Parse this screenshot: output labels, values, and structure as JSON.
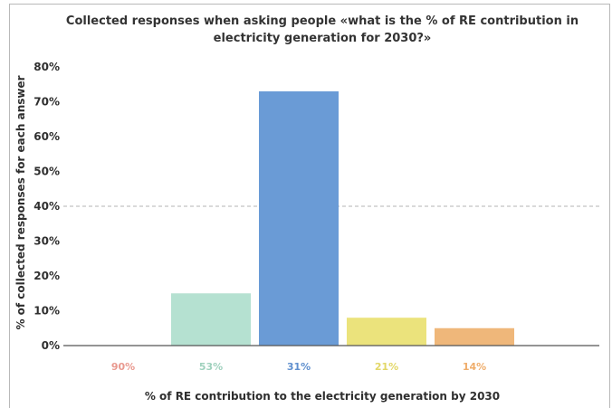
{
  "chart_data": {
    "type": "bar",
    "title_lines": [
      "Collected responses when asking people «what is the % of RE contribution in",
      "electricity generation for 2030?»"
    ],
    "xlabel": "% of RE contribution to the electricity generation by 2030",
    "ylabel": "% of collected responses for each answer",
    "categories": [
      "90%",
      "53%",
      "31%",
      "21%",
      "14%"
    ],
    "values": [
      0,
      15,
      73,
      8,
      5
    ],
    "colors": [
      "#f4a9a0",
      "#b5e1d1",
      "#6a9bd6",
      "#ebe37c",
      "#efb77a"
    ],
    "label_colors": [
      "#e9998f",
      "#9fd1bd",
      "#5f8fce",
      "#e2d767",
      "#efad6b"
    ],
    "ylim": [
      0,
      80
    ],
    "yticks": [
      0,
      10,
      20,
      30,
      40,
      50,
      60,
      70,
      80
    ],
    "ytick_labels": [
      "0%",
      "10%",
      "20%",
      "30%",
      "40%",
      "50%",
      "60%",
      "70%",
      "80%"
    ],
    "reference_line": 40,
    "grid": false,
    "legend": "none"
  }
}
